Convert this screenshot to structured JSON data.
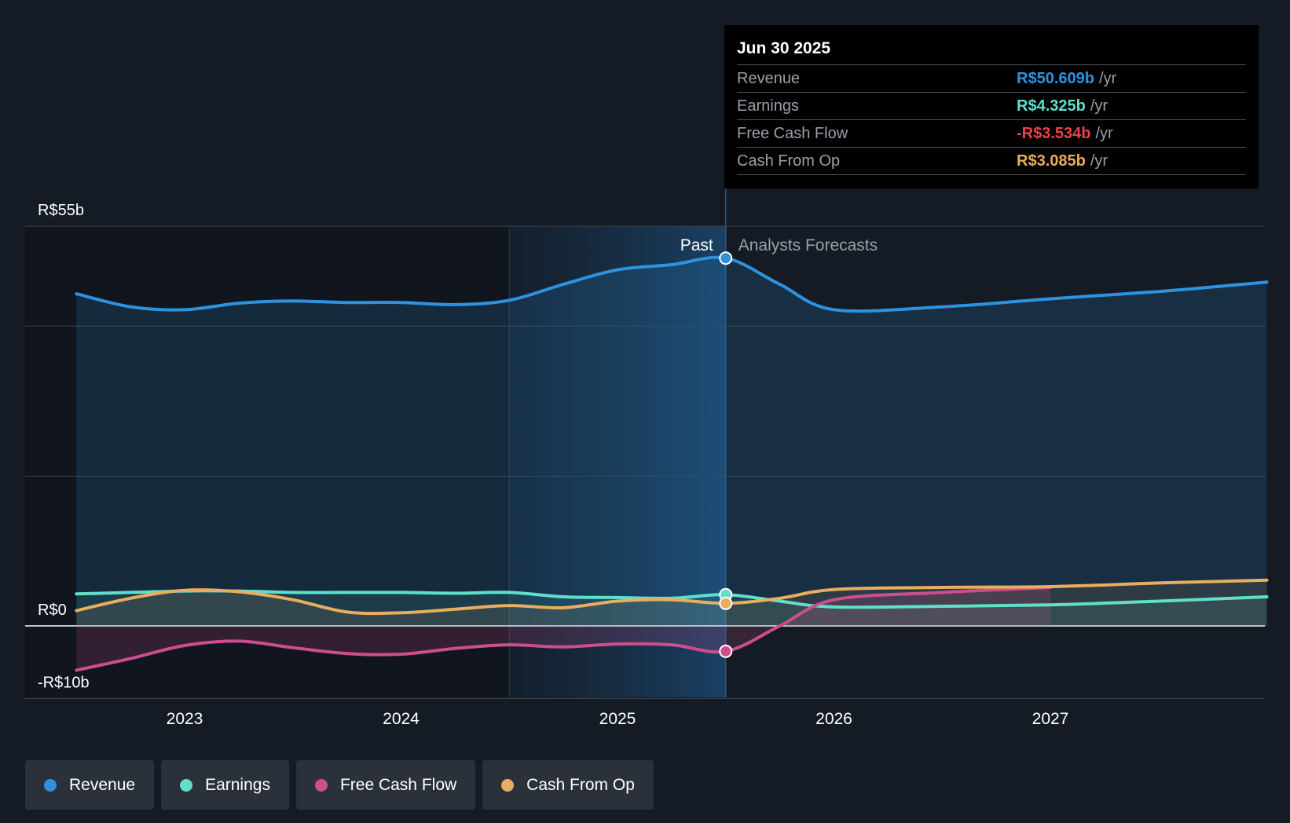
{
  "chart_data": {
    "type": "line",
    "title": "",
    "x_ticks": [
      "2023",
      "2024",
      "2025",
      "2026",
      "2027"
    ],
    "ylim": [
      -10,
      55
    ],
    "y_tick_labels": [
      {
        "value": 55,
        "label": "R$55b"
      },
      {
        "value": 0,
        "label": "R$0"
      },
      {
        "value": -10,
        "label": "-R$10b"
      }
    ],
    "past_label": "Past",
    "forecast_label": "Analysts Forecasts",
    "divider_date": 2025.5,
    "series": [
      {
        "name": "Revenue",
        "color": "#2d93e0",
        "fill": true,
        "points": [
          [
            2022.5,
            45.7
          ],
          [
            2022.75,
            43.9
          ],
          [
            2023.0,
            43.5
          ],
          [
            2023.25,
            44.4
          ],
          [
            2023.5,
            44.7
          ],
          [
            2023.75,
            44.5
          ],
          [
            2024.0,
            44.5
          ],
          [
            2024.25,
            44.2
          ],
          [
            2024.5,
            44.8
          ],
          [
            2024.75,
            47.0
          ],
          [
            2025.0,
            49.0
          ],
          [
            2025.25,
            49.7
          ],
          [
            2025.5,
            50.6
          ],
          [
            2025.75,
            47.0
          ],
          [
            2026.0,
            43.5
          ],
          [
            2026.5,
            43.9
          ],
          [
            2027.0,
            45.0
          ],
          [
            2027.5,
            46.0
          ],
          [
            2028.0,
            47.3
          ]
        ]
      },
      {
        "name": "Earnings",
        "color": "#5ee0cc",
        "fill": false,
        "points": [
          [
            2022.5,
            4.4
          ],
          [
            2022.75,
            4.6
          ],
          [
            2023.0,
            4.8
          ],
          [
            2023.25,
            4.8
          ],
          [
            2023.5,
            4.6
          ],
          [
            2023.75,
            4.6
          ],
          [
            2024.0,
            4.6
          ],
          [
            2024.25,
            4.5
          ],
          [
            2024.5,
            4.6
          ],
          [
            2024.75,
            4.0
          ],
          [
            2025.0,
            3.9
          ],
          [
            2025.25,
            3.8
          ],
          [
            2025.5,
            4.3
          ],
          [
            2025.75,
            3.4
          ],
          [
            2026.0,
            2.6
          ],
          [
            2026.5,
            2.7
          ],
          [
            2027.0,
            2.9
          ],
          [
            2027.5,
            3.4
          ],
          [
            2028.0,
            4.0
          ]
        ]
      },
      {
        "name": "Free Cash Flow",
        "color": "#cc4e8e",
        "fill": true,
        "points": [
          [
            2022.5,
            -6.1
          ],
          [
            2022.75,
            -4.5
          ],
          [
            2023.0,
            -2.7
          ],
          [
            2023.25,
            -2.1
          ],
          [
            2023.5,
            -3.0
          ],
          [
            2023.75,
            -3.8
          ],
          [
            2024.0,
            -3.9
          ],
          [
            2024.25,
            -3.1
          ],
          [
            2024.5,
            -2.6
          ],
          [
            2024.75,
            -2.9
          ],
          [
            2025.0,
            -2.5
          ],
          [
            2025.25,
            -2.6
          ],
          [
            2025.5,
            -3.5
          ],
          [
            2025.75,
            0.0
          ],
          [
            2026.0,
            3.6
          ],
          [
            2026.5,
            4.6
          ],
          [
            2027.0,
            5.3
          ]
        ]
      },
      {
        "name": "Cash From Op",
        "color": "#e8ad5e",
        "fill": false,
        "points": [
          [
            2022.5,
            2.1
          ],
          [
            2022.75,
            3.8
          ],
          [
            2023.0,
            4.9
          ],
          [
            2023.25,
            4.7
          ],
          [
            2023.5,
            3.6
          ],
          [
            2023.75,
            1.9
          ],
          [
            2024.0,
            1.8
          ],
          [
            2024.25,
            2.3
          ],
          [
            2024.5,
            2.8
          ],
          [
            2024.75,
            2.5
          ],
          [
            2025.0,
            3.4
          ],
          [
            2025.25,
            3.6
          ],
          [
            2025.5,
            3.1
          ],
          [
            2025.75,
            3.8
          ],
          [
            2026.0,
            5.0
          ],
          [
            2026.5,
            5.3
          ],
          [
            2027.0,
            5.4
          ],
          [
            2027.5,
            5.9
          ],
          [
            2028.0,
            6.3
          ]
        ]
      }
    ]
  },
  "tooltip": {
    "date": "Jun 30 2025",
    "unit": "/yr",
    "rows": [
      {
        "label": "Revenue",
        "value": "R$50.609b",
        "color": "#2d93e0"
      },
      {
        "label": "Earnings",
        "value": "R$4.325b",
        "color": "#5ee0cc"
      },
      {
        "label": "Free Cash Flow",
        "value": "-R$3.534b",
        "color": "#e8424a"
      },
      {
        "label": "Cash From Op",
        "value": "R$3.085b",
        "color": "#e8ad5e"
      }
    ]
  },
  "legend": [
    {
      "label": "Revenue",
      "color": "#2d93e0"
    },
    {
      "label": "Earnings",
      "color": "#5ee0cc"
    },
    {
      "label": "Free Cash Flow",
      "color": "#cc4e8e"
    },
    {
      "label": "Cash From Op",
      "color": "#e8ad5e"
    }
  ]
}
